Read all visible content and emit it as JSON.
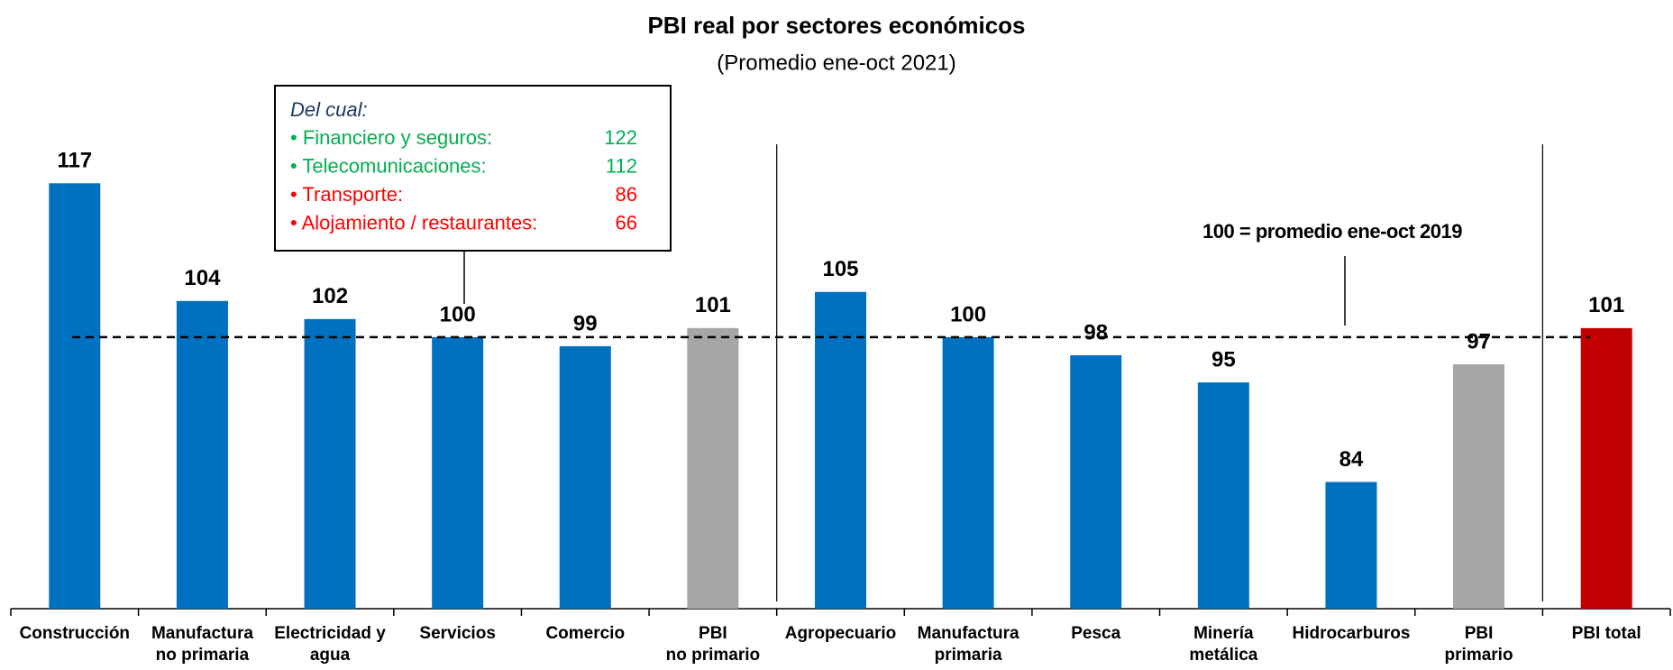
{
  "chart_data": {
    "type": "bar",
    "title": "PBI real por sectores económicos",
    "subtitle": "(Promedio ene-oct 2021)",
    "categories": [
      [
        "Construcción"
      ],
      [
        "Manufactura",
        "no primaria"
      ],
      [
        "Electricidad y",
        "agua"
      ],
      [
        "Servicios"
      ],
      [
        "Comercio"
      ],
      [
        "PBI",
        "no primario"
      ],
      [
        "Agropecuario"
      ],
      [
        "Manufactura",
        "primaria"
      ],
      [
        "Pesca"
      ],
      [
        "Minería",
        "metálica"
      ],
      [
        "Hidrocarburos"
      ],
      [
        "PBI",
        "primario"
      ],
      [
        "PBI total"
      ]
    ],
    "values": [
      117,
      104,
      102,
      100,
      99,
      101,
      105,
      100,
      98,
      95,
      84,
      97,
      101
    ],
    "colors": [
      "#0070c0",
      "#0070c0",
      "#0070c0",
      "#0070c0",
      "#0070c0",
      "#a6a6a6",
      "#0070c0",
      "#0070c0",
      "#0070c0",
      "#0070c0",
      "#0070c0",
      "#a6a6a6",
      "#c00000"
    ],
    "ylim": [
      70,
      125
    ],
    "reference_line": {
      "value": 100,
      "label": "100 = promedio ene-oct 2019"
    },
    "inset": {
      "title": "Del cual:",
      "items": [
        {
          "name": "• Financiero y seguros:",
          "value": 122,
          "color": "#00b050"
        },
        {
          "name": "• Telecomunicaciones:",
          "value": 112,
          "color": "#00b050"
        },
        {
          "name": "• Transporte:",
          "value": 86,
          "color": "#ff0000"
        },
        {
          "name": "• Alojamiento / restaurantes:",
          "value": 66,
          "color": "#ff0000"
        }
      ]
    }
  }
}
